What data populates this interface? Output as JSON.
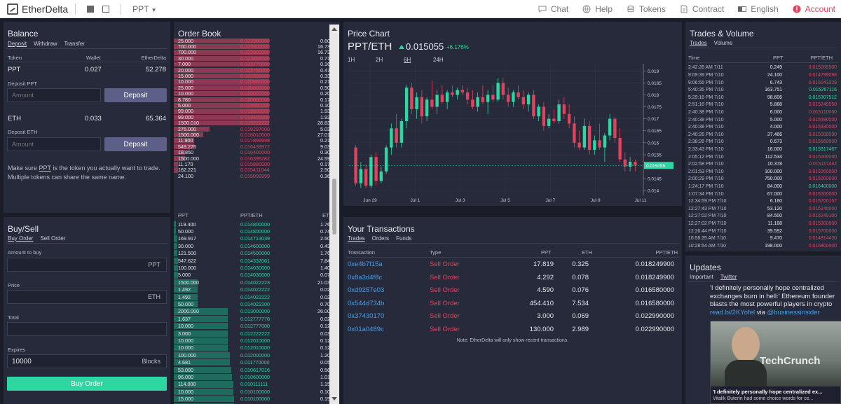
{
  "topbar": {
    "logo": "EtherDelta",
    "token": "PPT",
    "nav": [
      {
        "label": "Chat",
        "icon": "chat-icon"
      },
      {
        "label": "Help",
        "icon": "globe-icon"
      },
      {
        "label": "Tokens",
        "icon": "coins-icon"
      },
      {
        "label": "Contract",
        "icon": "document-icon"
      },
      {
        "label": "English",
        "icon": "language-icon"
      },
      {
        "label": "Account",
        "icon": "alert-icon"
      }
    ]
  },
  "balance": {
    "title": "Balance",
    "tabs": [
      "Deposit",
      "Withdraw",
      "Transfer"
    ],
    "headers": [
      "Token",
      "Wallet",
      "EtherDelta"
    ],
    "rows": [
      {
        "token": "PPT",
        "wallet": "0.027",
        "etherdelta": "52.278"
      },
      {
        "token": "ETH",
        "wallet": "0.033",
        "etherdelta": "65.364"
      }
    ],
    "deposit_ppt_label": "Deposit PPT",
    "deposit_eth_label": "Deposit ETH",
    "amount_placeholder": "Amount",
    "deposit_button": "Deposit",
    "note": "Make sure PPT is the token you actually want to trade. Multiple tokens can share the same name.",
    "note_part1": "Make sure ",
    "note_link": "PPT",
    "note_part2": " is the token you actually want to trade.",
    "note_line2": "Multiple tokens can share the same name."
  },
  "buysell": {
    "title": "Buy/Sell",
    "tabs": [
      "Buy Order",
      "Sell Order"
    ],
    "amount_label": "Amount to buy",
    "amount_unit": "PPT",
    "price_label": "Price",
    "price_unit": "ETH",
    "total_label": "Total",
    "expires_label": "Expires",
    "expires_value": "10000",
    "expires_unit": "Blocks",
    "button": "Buy Order"
  },
  "orderbook": {
    "title": "Order Book",
    "headers": [
      "PPT",
      "PPT/ETH",
      "ETH"
    ],
    "asks": [
      {
        "ppt": "25.000",
        "price": "0.023980000",
        "eth": "0.600",
        "depth": 0.85
      },
      {
        "ppt": "700.000",
        "price": "0.023900000",
        "eth": "16.730",
        "depth": 0.85
      },
      {
        "ppt": "700.000",
        "price": "0.023900000",
        "eth": "16.730",
        "depth": 0.85
      },
      {
        "ppt": "30.000",
        "price": "0.023888000",
        "eth": "0.717",
        "depth": 0.85
      },
      {
        "ppt": "7.000",
        "price": "0.023770000",
        "eth": "0.166",
        "depth": 0.85
      },
      {
        "ppt": "20.000",
        "price": "0.023750000",
        "eth": "0.475",
        "depth": 0.85
      },
      {
        "ppt": "15.000",
        "price": "0.022200000",
        "eth": "0.333",
        "depth": 0.85
      },
      {
        "ppt": "10.000",
        "price": "0.020980000",
        "eth": "0.210",
        "depth": 0.85
      },
      {
        "ppt": "25.000",
        "price": "0.020000000",
        "eth": "0.500",
        "depth": 0.85
      },
      {
        "ppt": "10.000",
        "price": "0.020000000",
        "eth": "0.200",
        "depth": 0.85
      },
      {
        "ppt": "8.780",
        "price": "0.020000000",
        "eth": "0.176",
        "depth": 0.85
      },
      {
        "ppt": "5.000",
        "price": "0.019980000",
        "eth": "0.100",
        "depth": 0.85
      },
      {
        "ppt": "99.000",
        "price": "0.019500000",
        "eth": "1.930",
        "depth": 0.85
      },
      {
        "ppt": "99.000",
        "price": "0.019400000",
        "eth": "1.921",
        "depth": 0.85
      },
      {
        "ppt": "1500.010",
        "price": "0.019222222",
        "eth": "28.834",
        "depth": 0.85
      },
      {
        "ppt": "275.000",
        "price": "0.018297000",
        "eth": "5.032",
        "depth": 0.32
      },
      {
        "ppt": "1500.000",
        "price": "0.018010000",
        "eth": "27.015",
        "depth": 0.26
      },
      {
        "ppt": "11.900",
        "price": "0.017899998",
        "eth": "0.213",
        "depth": 0.18
      },
      {
        "ppt": "549.276",
        "price": "0.016439972",
        "eth": "9.030",
        "depth": 0.18
      },
      {
        "ppt": "18.850",
        "price": "0.016400000",
        "eth": "0.309",
        "depth": 0.1
      },
      {
        "ppt": "1500.000",
        "price": "0.016395282",
        "eth": "24.593",
        "depth": 0.1
      },
      {
        "ppt": "11.170",
        "price": "0.015880000",
        "eth": "0.177",
        "depth": 0.04
      },
      {
        "ppt": "162.221",
        "price": "0.015411044",
        "eth": "2.500",
        "depth": 0.04
      },
      {
        "ppt": "24.100",
        "price": "0.015099999",
        "eth": "0.364",
        "depth": 0.0
      }
    ],
    "bids": [
      {
        "ppt": "119.400",
        "price": "0.014800000",
        "eth": "1.767",
        "depth": 0.02
      },
      {
        "ppt": "50.000",
        "price": "0.014800000",
        "eth": "0.740",
        "depth": 0.02
      },
      {
        "ppt": "169.917",
        "price": "0.014713039",
        "eth": "2.500",
        "depth": 0.03
      },
      {
        "ppt": "30.000",
        "price": "0.014600000",
        "eth": "0.438",
        "depth": 0.03
      },
      {
        "ppt": "121.500",
        "price": "0.014500000",
        "eth": "1.762",
        "depth": 0.03
      },
      {
        "ppt": "547.622",
        "price": "0.014332061",
        "eth": "7.849",
        "depth": 0.04
      },
      {
        "ppt": "100.000",
        "price": "0.014030000",
        "eth": "1.403",
        "depth": 0.04
      },
      {
        "ppt": "5.000",
        "price": "0.014030000",
        "eth": "0.070",
        "depth": 0.04
      },
      {
        "ppt": "1500.000",
        "price": "0.014022223",
        "eth": "21.033",
        "depth": 0.21
      },
      {
        "ppt": "1.492",
        "price": "0.014022222",
        "eth": "0.021",
        "depth": 0.21
      },
      {
        "ppt": "1.492",
        "price": "0.014022222",
        "eth": "0.021",
        "depth": 0.21
      },
      {
        "ppt": "50.000",
        "price": "0.014022200",
        "eth": "0.701",
        "depth": 0.21
      },
      {
        "ppt": "2000.000",
        "price": "0.013000000",
        "eth": "26.000",
        "depth": 0.48
      },
      {
        "ppt": "1.637",
        "price": "0.012777778",
        "eth": "0.021",
        "depth": 0.48
      },
      {
        "ppt": "10.000",
        "price": "0.012777000",
        "eth": "0.128",
        "depth": 0.48
      },
      {
        "ppt": "3.000",
        "price": "0.012222222",
        "eth": "0.037",
        "depth": 0.48
      },
      {
        "ppt": "10.000",
        "price": "0.012010000",
        "eth": "0.120",
        "depth": 0.48
      },
      {
        "ppt": "10.000",
        "price": "0.012010000",
        "eth": "0.120",
        "depth": 0.48
      },
      {
        "ppt": "100.000",
        "price": "0.012000000",
        "eth": "1.200",
        "depth": 0.5
      },
      {
        "ppt": "4.681",
        "price": "0.011770000",
        "eth": "0.055",
        "depth": 0.5
      },
      {
        "ppt": "53.000",
        "price": "0.010617016",
        "eth": "0.563",
        "depth": 0.51
      },
      {
        "ppt": "96.000",
        "price": "0.010600000",
        "eth": "1.018",
        "depth": 0.52
      },
      {
        "ppt": "114.000",
        "price": "0.010111111",
        "eth": "1.153",
        "depth": 0.53
      },
      {
        "ppt": "10.000",
        "price": "0.010100000",
        "eth": "0.101",
        "depth": 0.53
      },
      {
        "ppt": "15.000",
        "price": "0.010100000",
        "eth": "0.151",
        "depth": 0.54
      },
      {
        "ppt": "20.000",
        "price": "0.010100000",
        "eth": "0.202",
        "depth": 0.54
      }
    ]
  },
  "chart": {
    "title": "Price Chart",
    "pair": "PPT/ETH",
    "price": "0.015055",
    "change": "+6.176%",
    "ranges": [
      "1H",
      "2H",
      "6H",
      "24H"
    ],
    "active_range": "6H",
    "y_ticks": [
      "0.019",
      "0.0185",
      "0.018",
      "0.0175",
      "0.017",
      "0.0165",
      "0.016",
      "0.0155",
      "0.015",
      "0.0145",
      "0.014"
    ],
    "x_ticks": [
      "Jun 29",
      "Jul 1",
      "Jul 3",
      "Jul 5",
      "Jul 7",
      "Jul 9",
      "Jul 11"
    ],
    "last_label": "0.015055"
  },
  "chart_data": {
    "type": "candlestick",
    "ylim": [
      0.0138,
      0.0193
    ],
    "y_ticks": [
      0.019,
      0.0185,
      0.018,
      0.0175,
      0.017,
      0.0165,
      0.016,
      0.0155,
      0.015,
      0.0145,
      0.014
    ],
    "x_ticks": [
      "Jun 29",
      "Jul 1",
      "Jul 3",
      "Jul 5",
      "Jul 7",
      "Jul 9",
      "Jul 11"
    ],
    "candles": [
      [
        0.0158,
        0.0159,
        0.0142,
        0.0143
      ],
      [
        0.0143,
        0.0152,
        0.0141,
        0.0149
      ],
      [
        0.0149,
        0.0151,
        0.0141,
        0.0142
      ],
      [
        0.0142,
        0.0155,
        0.0141,
        0.0154
      ],
      [
        0.0154,
        0.0156,
        0.0142,
        0.0144
      ],
      [
        0.0144,
        0.015,
        0.0143,
        0.0148
      ],
      [
        0.0148,
        0.0159,
        0.0147,
        0.0158
      ],
      [
        0.0158,
        0.0168,
        0.0155,
        0.0166
      ],
      [
        0.0166,
        0.0172,
        0.0158,
        0.016
      ],
      [
        0.016,
        0.017,
        0.0158,
        0.0169
      ],
      [
        0.0169,
        0.0184,
        0.0166,
        0.0183
      ],
      [
        0.0183,
        0.0185,
        0.0172,
        0.0174
      ],
      [
        0.0174,
        0.0181,
        0.017,
        0.0179
      ],
      [
        0.0179,
        0.0182,
        0.0168,
        0.0171
      ],
      [
        0.0171,
        0.0179,
        0.0169,
        0.0178
      ],
      [
        0.0178,
        0.0186,
        0.0174,
        0.0175
      ],
      [
        0.0175,
        0.0182,
        0.0172,
        0.018
      ],
      [
        0.018,
        0.0184,
        0.0176,
        0.0177
      ],
      [
        0.0177,
        0.0182,
        0.0174,
        0.0181
      ],
      [
        0.0181,
        0.0184,
        0.0179,
        0.018
      ],
      [
        0.018,
        0.0183,
        0.0178,
        0.0182
      ],
      [
        0.0182,
        0.0184,
        0.018,
        0.0181
      ],
      [
        0.0181,
        0.0183,
        0.0176,
        0.0178
      ],
      [
        0.0178,
        0.0182,
        0.0174,
        0.0175
      ],
      [
        0.0175,
        0.0181,
        0.0173,
        0.0179
      ],
      [
        0.0179,
        0.0184,
        0.0176,
        0.0177
      ],
      [
        0.0177,
        0.0182,
        0.0172,
        0.018
      ],
      [
        0.018,
        0.0184,
        0.0177,
        0.0178
      ],
      [
        0.0178,
        0.0187,
        0.0177,
        0.0185
      ],
      [
        0.0185,
        0.0187,
        0.0178,
        0.018
      ],
      [
        0.018,
        0.0183,
        0.0175,
        0.0177
      ],
      [
        0.0177,
        0.0182,
        0.0175,
        0.0181
      ],
      [
        0.0181,
        0.0184,
        0.0178,
        0.0179
      ],
      [
        0.0179,
        0.0182,
        0.0174,
        0.0176
      ],
      [
        0.0176,
        0.0181,
        0.0173,
        0.018
      ],
      [
        0.018,
        0.0182,
        0.017,
        0.0171
      ],
      [
        0.0171,
        0.0176,
        0.0169,
        0.0175
      ],
      [
        0.0175,
        0.0177,
        0.0165,
        0.0167
      ],
      [
        0.0167,
        0.0172,
        0.0166,
        0.017
      ],
      [
        0.017,
        0.0174,
        0.0168,
        0.0169
      ],
      [
        0.0169,
        0.0178,
        0.0168,
        0.0176
      ],
      [
        0.0176,
        0.0179,
        0.017,
        0.0172
      ],
      [
        0.0172,
        0.0176,
        0.0166,
        0.0168
      ],
      [
        0.0168,
        0.0171,
        0.0158,
        0.016
      ],
      [
        0.016,
        0.0165,
        0.0157,
        0.0158
      ],
      [
        0.0158,
        0.017,
        0.0157,
        0.0167
      ],
      [
        0.0167,
        0.0169,
        0.0155,
        0.0157
      ],
      [
        0.0157,
        0.0163,
        0.0155,
        0.0161
      ],
      [
        0.0161,
        0.0168,
        0.0157,
        0.0158
      ],
      [
        0.0158,
        0.0164,
        0.0152,
        0.0163
      ],
      [
        0.0163,
        0.0172,
        0.0161,
        0.017
      ],
      [
        0.017,
        0.0171,
        0.016,
        0.0162
      ],
      [
        0.0162,
        0.0166,
        0.0152,
        0.0153
      ],
      [
        0.0153,
        0.0156,
        0.0148,
        0.015
      ],
      [
        0.015,
        0.0154,
        0.0148,
        0.0152
      ],
      [
        0.0152,
        0.0153,
        0.0148,
        0.01505
      ]
    ]
  },
  "transactions": {
    "title": "Your Transactions",
    "tabs": [
      "Trades",
      "Orders",
      "Funds"
    ],
    "headers": [
      "Transaction",
      "Type",
      "PPT",
      "ETH",
      "PPT/ETH"
    ],
    "rows": [
      {
        "tx": "0xe4b7f15a",
        "type": "Sell Order",
        "ppt": "17.819",
        "eth": "0.325",
        "price": "0.018249900"
      },
      {
        "tx": "0x8a3d4f8c",
        "type": "Sell Order",
        "ppt": "4.292",
        "eth": "0.078",
        "price": "0.018249900"
      },
      {
        "tx": "0xd9257e03",
        "type": "Sell Order",
        "ppt": "4.590",
        "eth": "0.076",
        "price": "0.016580000"
      },
      {
        "tx": "0x544d734b",
        "type": "Sell Order",
        "ppt": "454.410",
        "eth": "7.534",
        "price": "0.016580000"
      },
      {
        "tx": "0x37430170",
        "type": "Sell Order",
        "ppt": "3.000",
        "eth": "0.069",
        "price": "0.022990000"
      },
      {
        "tx": "0x01a0489c",
        "type": "Sell Order",
        "ppt": "130.000",
        "eth": "2.989",
        "price": "0.022990000"
      }
    ],
    "note": "Note: EtherDelta will only show recent transactions."
  },
  "trades": {
    "title": "Trades & Volume",
    "tabs": [
      "Trades",
      "Volume"
    ],
    "headers": [
      "Time",
      "PPT",
      "PPT/ETH"
    ],
    "rows": [
      {
        "time": "2:42:28 AM 7/11",
        "ppt": "0.249",
        "price": "0.015055500",
        "side": "sell"
      },
      {
        "time": "9:09:39 PM 7/10",
        "ppt": "24.100",
        "price": "0.014799098",
        "side": "sell"
      },
      {
        "time": "9:06:55 PM 7/10",
        "ppt": "6.743",
        "price": "0.015043329",
        "side": "sell"
      },
      {
        "time": "5:40:35 PM 7/10",
        "ppt": "163.751",
        "price": "0.015267116",
        "side": "buy"
      },
      {
        "time": "5:29:16 PM 7/10",
        "ppt": "98.606",
        "price": "0.015307512",
        "side": "buy"
      },
      {
        "time": "2:51:16 PM 7/10",
        "ppt": "5.888",
        "price": "0.015249550",
        "side": "sell"
      },
      {
        "time": "2:40:38 PM 7/10",
        "ppt": "6.000",
        "price": "0.015110000",
        "side": "sell"
      },
      {
        "time": "2:40:38 PM 7/10",
        "ppt": "5.000",
        "price": "0.015590000",
        "side": "sell"
      },
      {
        "time": "2:40:38 PM 7/10",
        "ppt": "4.000",
        "price": "0.015330000",
        "side": "sell"
      },
      {
        "time": "2:40:26 PM 7/10",
        "ppt": "37.466",
        "price": "0.015000000",
        "side": "sell"
      },
      {
        "time": "2:38:26 PM 7/10",
        "ppt": "0.673",
        "price": "0.015660000",
        "side": "sell"
      },
      {
        "time": "2:33:43 PM 7/10",
        "ppt": "16.000",
        "price": "0.015317467",
        "side": "buy"
      },
      {
        "time": "2:05:12 PM 7/10",
        "ppt": "112.534",
        "price": "0.015000000",
        "side": "sell"
      },
      {
        "time": "2:02:58 PM 7/10",
        "ppt": "10.378",
        "price": "0.015117442",
        "side": "sell"
      },
      {
        "time": "2:01:53 PM 7/10",
        "ppt": "100.000",
        "price": "0.015000000",
        "side": "sell"
      },
      {
        "time": "2:00:29 PM 7/10",
        "ppt": "750.000",
        "price": "0.015000000",
        "side": "sell"
      },
      {
        "time": "1:24:17 PM 7/10",
        "ppt": "84.000",
        "price": "0.016400000",
        "side": "buy"
      },
      {
        "time": "1:07:34 PM 7/10",
        "ppt": "67.000",
        "price": "0.015000000",
        "side": "sell"
      },
      {
        "time": "12:34:59 PM 7/10",
        "ppt": "6.160",
        "price": "0.015700157",
        "side": "sell"
      },
      {
        "time": "12:27:43 PM 7/10",
        "ppt": "53.120",
        "price": "0.015240000",
        "side": "sell"
      },
      {
        "time": "12:27:02 PM 7/10",
        "ppt": "84.500",
        "price": "0.015240100",
        "side": "sell"
      },
      {
        "time": "12:27:02 PM 7/10",
        "ppt": "11.188",
        "price": "0.015300000",
        "side": "sell"
      },
      {
        "time": "12:26:44 PM 7/10",
        "ppt": "39.592",
        "price": "0.015700000",
        "side": "sell"
      },
      {
        "time": "10:58:35 AM 7/10",
        "ppt": "9.470",
        "price": "0.014814430",
        "side": "sell"
      },
      {
        "time": "10:28:54 AM 7/10",
        "ppt": "198.000",
        "price": "0.015800000",
        "side": "sell"
      }
    ]
  },
  "updates": {
    "title": "Updates",
    "tabs": [
      "Important",
      "Twitter"
    ],
    "tweet_line1": "'I definitely personally hope centralized",
    "tweet_line2": "exchanges burn in hell:' Ethereum founder",
    "tweet_line3": "blasts the most powerful players in crypto",
    "tweet_link": "read.bi/2KYofel",
    "tweet_via": " via ",
    "tweet_handle": "@businessinsider",
    "card_title": "'I definitely personally hope centralized ex...",
    "card_desc": "Vitalik Buterin had some choice words for ce...",
    "card_image_text": "TechCrunch"
  },
  "colors": {
    "ask": "#e2435c",
    "bid": "#2ed6a2",
    "link": "#4d9fe6"
  }
}
